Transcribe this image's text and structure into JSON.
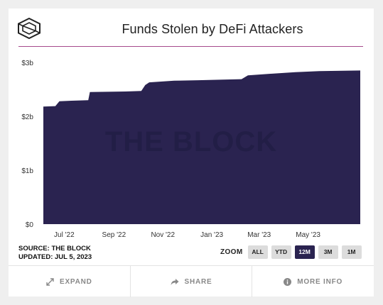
{
  "header": {
    "title": "Funds Stolen by DeFi Attackers",
    "logo_icon": "the-block-cube-icon"
  },
  "watermark": "THE BLOCK",
  "source": {
    "line1": "SOURCE: THE BLOCK",
    "line2": "UPDATED: JUL 5, 2023"
  },
  "zoom": {
    "label": "ZOOM",
    "buttons": [
      "ALL",
      "YTD",
      "12M",
      "3M",
      "1M"
    ],
    "active": "12M"
  },
  "footer": {
    "expand_label": "EXPAND",
    "expand_icon": "expand-arrows-icon",
    "share_label": "SHARE",
    "share_icon": "share-arrow-icon",
    "info_label": "MORE INFO",
    "info_icon": "info-circle-icon"
  },
  "colors": {
    "area_fill": "#2a2350",
    "title_rule": "#a64a8c",
    "active_zoom": "#2a2350"
  },
  "chart_data": {
    "type": "area",
    "title": "Funds Stolen by DeFi Attackers",
    "xlabel": "",
    "ylabel": "",
    "y_ticks": [
      "$0",
      "$1b",
      "$2b",
      "$3b"
    ],
    "y_tick_values": [
      0,
      1,
      2,
      3
    ],
    "ylim": [
      0,
      3
    ],
    "x_ticks": [
      "Jul '22",
      "Sep '22",
      "Nov '22",
      "Jan '23",
      "Mar '23",
      "May '23"
    ],
    "x_tick_dates": [
      "2022-07-01",
      "2022-09-01",
      "2022-11-01",
      "2023-01-01",
      "2023-03-01",
      "2023-05-01"
    ],
    "xlim": [
      "2022-06-05",
      "2023-07-05"
    ],
    "grid": false,
    "legend": "none",
    "series": [
      {
        "unit": "billions USD",
        "points": [
          [
            "2022-06-05",
            2.18
          ],
          [
            "2022-06-20",
            2.19
          ],
          [
            "2022-06-25",
            2.28
          ],
          [
            "2022-07-10",
            2.29
          ],
          [
            "2022-07-31",
            2.3
          ],
          [
            "2022-08-02",
            2.45
          ],
          [
            "2022-09-15",
            2.46
          ],
          [
            "2022-10-05",
            2.47
          ],
          [
            "2022-10-10",
            2.58
          ],
          [
            "2022-10-15",
            2.63
          ],
          [
            "2022-11-15",
            2.66
          ],
          [
            "2022-12-15",
            2.67
          ],
          [
            "2023-01-15",
            2.68
          ],
          [
            "2023-02-07",
            2.69
          ],
          [
            "2023-02-15",
            2.76
          ],
          [
            "2023-03-15",
            2.79
          ],
          [
            "2023-04-15",
            2.82
          ],
          [
            "2023-05-15",
            2.84
          ],
          [
            "2023-07-05",
            2.85
          ]
        ]
      }
    ]
  }
}
